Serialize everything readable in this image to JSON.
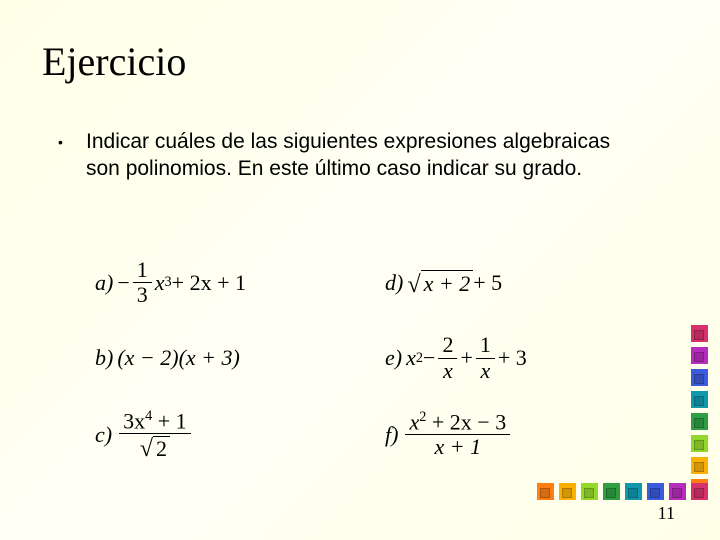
{
  "title": "Ejercicio",
  "bullet": "•",
  "paragraph": "Indicar cuáles de las siguientes expresiones algebraicas son polinomios. En este último caso indicar su grado.",
  "eq": {
    "a_label": "a",
    "b_label": "b",
    "c_label": "c",
    "d_label": "d",
    "e_label": "e",
    "f_label": "f",
    "a_frac_num": "1",
    "a_frac_den": "3",
    "a_rest1": "x",
    "a_sup1": "3",
    "a_rest2": " + 2x + 1",
    "b_body": "(x − 2)(x + 3)",
    "c_num_part1": "3x",
    "c_num_sup": "4",
    "c_num_part2": " + 1",
    "c_den_sqrt": "2",
    "d_sqrt_body": "x + 2",
    "d_rest": " + 5",
    "e_part1": "x",
    "e_sup1": "2",
    "e_dash": " − ",
    "e_f1_num": "2",
    "e_f1_den": "x",
    "e_plus1": " + ",
    "e_f2_num": "1",
    "e_f2_den": "x",
    "e_plus2": " + 3",
    "f_num_part1": "x",
    "f_num_sup": "2",
    "f_num_part2": " + 2x − 3",
    "f_den": "x + 1"
  },
  "page_number": "11",
  "decor_colors": [
    "#d6336c",
    "#b72dbb",
    "#3b5bdb",
    "#1098ad",
    "#2f9e44",
    "#94d82d",
    "#fab005",
    "#fd7e14"
  ],
  "style": {
    "bg_gradient_from": "#ffffe8",
    "bg_gradient_to": "#fffff5",
    "title_fontsize": 40,
    "body_fontsize": 21,
    "eq_fontsize": 22,
    "text_color": "#000000",
    "decor_square_size": 17
  }
}
